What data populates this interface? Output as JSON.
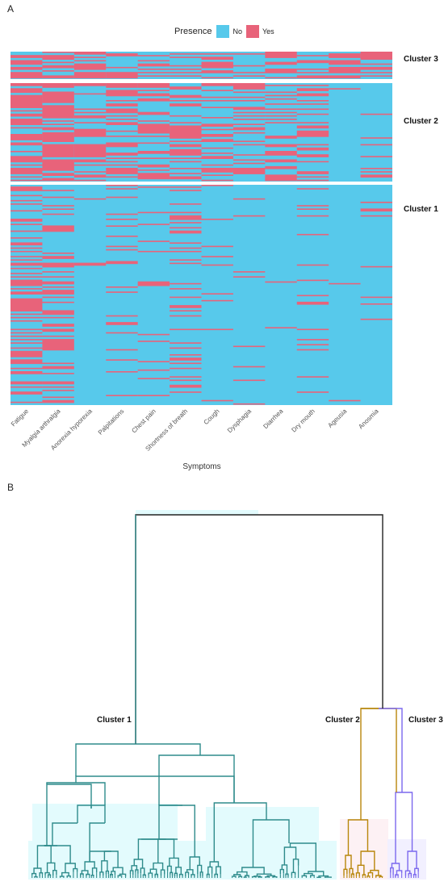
{
  "panels": {
    "a": "A",
    "b": "B"
  },
  "chart_data": [
    {
      "type": "heatmap",
      "legend": {
        "title": "Presence",
        "placement": "top",
        "entries": [
          {
            "label": "No",
            "color": "#57C9EB"
          },
          {
            "label": "Yes",
            "color": "#E8637A"
          }
        ]
      },
      "xlabel": "Symptoms",
      "categories": [
        "Fatigue",
        "Myalgia arthralgia",
        "Anorexia hyporexia",
        "Palpitations",
        "Chest pain",
        "Shortness of breath",
        "Cough",
        "Dysphagia",
        "Diarrhea",
        "Dry mouth",
        "Ageusia",
        "Anosmia"
      ],
      "clusters": [
        "Cluster 3",
        "Cluster 2",
        "Cluster 1"
      ],
      "yes_fraction_by_cluster": {
        "Cluster 3": [
          0.75,
          0.45,
          0.6,
          0.6,
          0.55,
          0.5,
          0.5,
          0.35,
          0.55,
          0.6,
          0.9,
          0.8
        ],
        "Cluster 2": [
          0.75,
          0.85,
          0.45,
          0.6,
          0.6,
          0.55,
          0.55,
          0.4,
          0.45,
          0.55,
          0.02,
          0.12
        ],
        "Cluster 1": [
          0.55,
          0.45,
          0.02,
          0.12,
          0.1,
          0.25,
          0.08,
          0.06,
          0.03,
          0.12,
          0.01,
          0.05
        ]
      },
      "colors": {
        "no": "#57C9EB",
        "yes": "#E8637A"
      }
    },
    {
      "type": "dendrogram",
      "clusters": [
        {
          "name": "Cluster 1",
          "color": "#2E8B8B",
          "highlight": "#E3FBFD"
        },
        {
          "name": "Cluster 2",
          "color": "#B8860B",
          "highlight": "#FDF1F4"
        },
        {
          "name": "Cluster 3",
          "color": "#7B68EE",
          "highlight": "#F2F0FF"
        }
      ],
      "root_color": "#222222"
    }
  ]
}
